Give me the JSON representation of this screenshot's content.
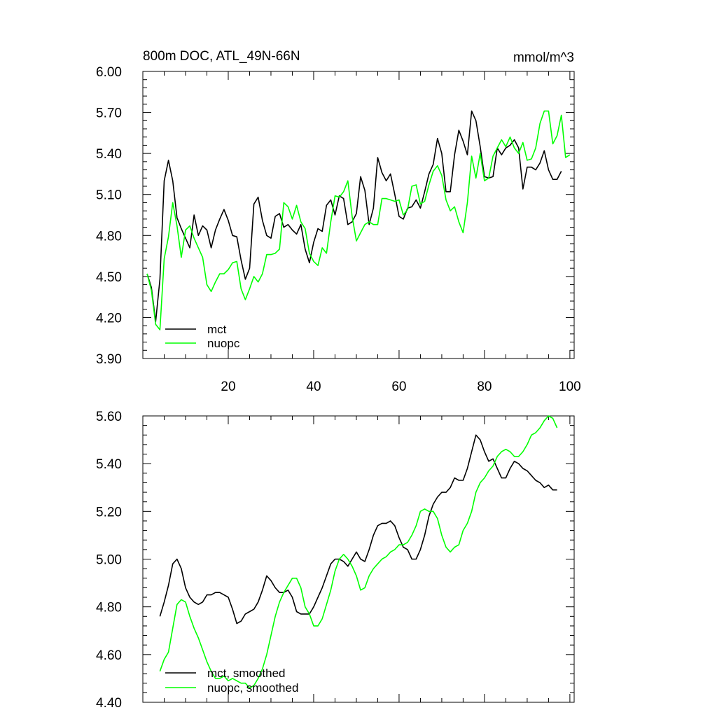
{
  "chart_data": [
    {
      "type": "line",
      "title": "800m DOC, ATL_49N-66N",
      "units": "mmol/m^3",
      "xlim": [
        0,
        101
      ],
      "ylim": [
        3.9,
        6.0
      ],
      "xticks": [
        20,
        40,
        60,
        80,
        100
      ],
      "yticks": [
        "3.90",
        "4.20",
        "4.50",
        "4.80",
        "5.10",
        "5.40",
        "5.70",
        "6.00"
      ],
      "legend_position": "bottom-left",
      "series": [
        {
          "name": "mct",
          "color": "#000000",
          "x_start": 1,
          "values": [
            4.52,
            4.42,
            4.17,
            4.48,
            5.2,
            5.35,
            5.2,
            4.93,
            4.85,
            4.78,
            4.71,
            4.95,
            4.8,
            4.87,
            4.84,
            4.71,
            4.84,
            4.92,
            4.99,
            4.91,
            4.8,
            4.79,
            4.62,
            4.48,
            4.56,
            5.03,
            5.08,
            4.91,
            4.8,
            4.78,
            4.94,
            4.96,
            4.86,
            4.88,
            4.84,
            4.81,
            4.88,
            4.7,
            4.6,
            4.75,
            4.85,
            4.83,
            5.02,
            5.06,
            4.95,
            5.09,
            5.07,
            4.88,
            4.9,
            4.96,
            5.23,
            5.13,
            4.88,
            5.0,
            5.37,
            5.26,
            5.2,
            5.25,
            5.1,
            4.94,
            4.92,
            5.0,
            5.01,
            5.06,
            5.0,
            5.12,
            5.25,
            5.32,
            5.51,
            5.4,
            5.12,
            5.12,
            5.39,
            5.57,
            5.49,
            5.39,
            5.71,
            5.64,
            5.45,
            5.23,
            5.22,
            5.23,
            5.44,
            5.39,
            5.44,
            5.46,
            5.5,
            5.44,
            5.14,
            5.3,
            5.3,
            5.28,
            5.33,
            5.42,
            5.28,
            5.21,
            5.21,
            5.27
          ]
        },
        {
          "name": "nuopc",
          "color": "#00ff00",
          "x_start": 1,
          "values": [
            4.52,
            4.4,
            4.15,
            4.11,
            4.63,
            4.79,
            5.04,
            4.87,
            4.64,
            4.84,
            4.87,
            4.78,
            4.71,
            4.64,
            4.44,
            4.39,
            4.46,
            4.52,
            4.52,
            4.55,
            4.6,
            4.61,
            4.41,
            4.33,
            4.41,
            4.5,
            4.46,
            4.52,
            4.66,
            4.66,
            4.67,
            4.7,
            5.04,
            5.01,
            4.92,
            5.02,
            4.9,
            4.85,
            4.67,
            4.61,
            4.58,
            4.71,
            4.67,
            4.9,
            5.09,
            5.08,
            5.12,
            5.2,
            4.94,
            4.76,
            4.82,
            4.88,
            4.9,
            4.88,
            4.88,
            5.07,
            5.07,
            5.06,
            5.05,
            5.06,
            4.95,
            4.99,
            5.16,
            5.17,
            5.03,
            5.05,
            5.17,
            5.27,
            5.31,
            5.24,
            5.06,
            4.98,
            5.01,
            4.9,
            4.82,
            5.04,
            5.38,
            5.22,
            5.4,
            5.2,
            5.22,
            5.38,
            5.44,
            5.5,
            5.45,
            5.52,
            5.44,
            5.4,
            5.48,
            5.35,
            5.36,
            5.44,
            5.62,
            5.71,
            5.71,
            5.47,
            5.53,
            5.68,
            5.37,
            5.39
          ]
        }
      ]
    },
    {
      "type": "line",
      "title": "",
      "xlim": [
        0,
        101
      ],
      "ylim": [
        4.4,
        5.6
      ],
      "xticks": [
        20,
        40,
        60,
        80,
        100
      ],
      "yticks": [
        "4.40",
        "4.60",
        "4.80",
        "5.00",
        "5.20",
        "5.40",
        "5.60"
      ],
      "legend_position": "bottom-left",
      "series": [
        {
          "name": "mct, smoothed",
          "color": "#000000",
          "x_start": 4,
          "values": [
            4.76,
            4.82,
            4.89,
            4.98,
            5.0,
            4.96,
            4.88,
            4.84,
            4.82,
            4.81,
            4.82,
            4.85,
            4.85,
            4.86,
            4.86,
            4.85,
            4.84,
            4.79,
            4.73,
            4.74,
            4.77,
            4.78,
            4.79,
            4.82,
            4.87,
            4.93,
            4.91,
            4.88,
            4.86,
            4.86,
            4.87,
            4.84,
            4.78,
            4.77,
            4.77,
            4.77,
            4.8,
            4.84,
            4.88,
            4.93,
            4.98,
            5.0,
            5.0,
            4.99,
            4.97,
            5.0,
            5.03,
            5.0,
            4.99,
            5.04,
            5.1,
            5.14,
            5.15,
            5.15,
            5.16,
            5.14,
            5.09,
            5.05,
            5.04,
            5.0,
            5.0,
            5.04,
            5.1,
            5.18,
            5.23,
            5.26,
            5.28,
            5.28,
            5.3,
            5.34,
            5.33,
            5.33,
            5.38,
            5.45,
            5.52,
            5.5,
            5.45,
            5.41,
            5.42,
            5.38,
            5.34,
            5.34,
            5.38,
            5.41,
            5.4,
            5.38,
            5.37,
            5.35,
            5.33,
            5.32,
            5.3,
            5.31,
            5.29,
            5.29
          ]
        },
        {
          "name": "nuopc, smoothed",
          "color": "#00ff00",
          "x_start": 4,
          "values": [
            4.53,
            4.58,
            4.61,
            4.71,
            4.81,
            4.83,
            4.82,
            4.76,
            4.71,
            4.67,
            4.62,
            4.57,
            4.53,
            4.5,
            4.5,
            4.51,
            4.49,
            4.5,
            4.49,
            4.48,
            4.48,
            4.46,
            4.47,
            4.5,
            4.54,
            4.6,
            4.68,
            4.76,
            4.82,
            4.86,
            4.89,
            4.92,
            4.92,
            4.88,
            4.8,
            4.77,
            4.72,
            4.72,
            4.75,
            4.81,
            4.87,
            4.95,
            5.0,
            5.02,
            5.0,
            4.97,
            4.93,
            4.87,
            4.88,
            4.93,
            4.96,
            4.98,
            5.0,
            5.01,
            5.03,
            5.04,
            5.06,
            5.06,
            5.07,
            5.1,
            5.14,
            5.2,
            5.21,
            5.2,
            5.2,
            5.17,
            5.1,
            5.05,
            5.03,
            5.05,
            5.06,
            5.12,
            5.15,
            5.2,
            5.28,
            5.32,
            5.34,
            5.37,
            5.39,
            5.43,
            5.45,
            5.46,
            5.45,
            5.43,
            5.43,
            5.45,
            5.48,
            5.52,
            5.53,
            5.55,
            5.58,
            5.6,
            5.59,
            5.55
          ]
        }
      ]
    }
  ]
}
